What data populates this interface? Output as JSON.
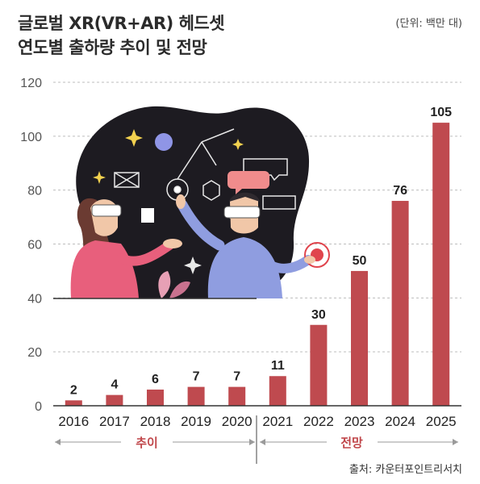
{
  "title_line1": "글로벌 XR(VR+AR) 헤드셋",
  "title_line2": "연도별 출하량 추이 및 전망",
  "unit": "(단위: 백만 대)",
  "source": "출처: 카운터포인트리서치",
  "groups": {
    "history": "추이",
    "forecast": "전망"
  },
  "colors": {
    "bar": "#bf4a4f",
    "group_label": "#c0464a",
    "grid": "#bdbdbd"
  },
  "illustration": "two-people-vr-headsets-icon",
  "chart_data": {
    "type": "bar",
    "title": "글로벌 XR(VR+AR) 헤드셋 연도별 출하량 추이 및 전망",
    "categories": [
      "2016",
      "2017",
      "2018",
      "2019",
      "2020",
      "2021",
      "2022",
      "2023",
      "2024",
      "2025"
    ],
    "values": [
      2,
      4,
      6,
      7,
      7,
      11,
      30,
      50,
      76,
      105
    ],
    "ylim": [
      0,
      120
    ],
    "yticks": [
      0,
      20,
      40,
      60,
      80,
      100,
      120
    ],
    "grid": true
  }
}
